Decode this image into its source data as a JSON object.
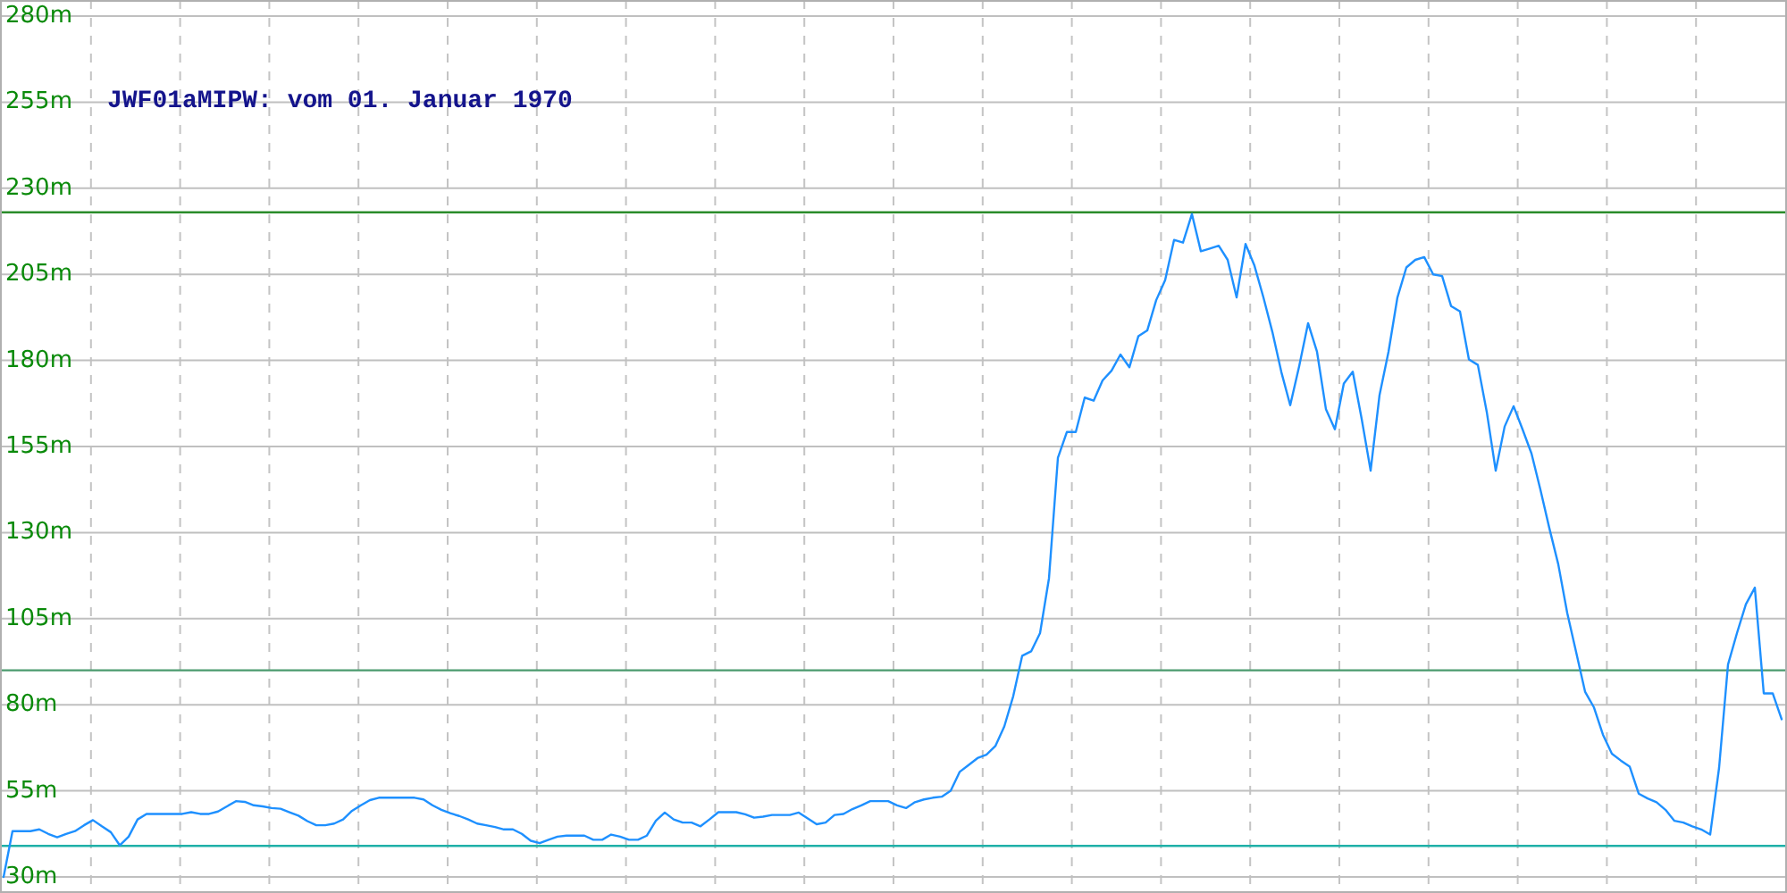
{
  "chart_data": {
    "type": "line",
    "title": "JWF01aMIPW: vom 01. Januar 1970",
    "categories": [
      null,
      null,
      null,
      null,
      null,
      null,
      null,
      null,
      null,
      null,
      null,
      null,
      null,
      null,
      null,
      null,
      null,
      null,
      null,
      null,
      null,
      null,
      null,
      null,
      null,
      null,
      null,
      null,
      null,
      null,
      null,
      null,
      null,
      null,
      null,
      null,
      null,
      null,
      null,
      null,
      null,
      null,
      null,
      null,
      null,
      null,
      null,
      null,
      null,
      null,
      null,
      null,
      null,
      null,
      null,
      null,
      null,
      null,
      null,
      null,
      null,
      null,
      null,
      null,
      null,
      null,
      null,
      null,
      null,
      null,
      null,
      null,
      null,
      null,
      null,
      null,
      null,
      null,
      null,
      null,
      null,
      null,
      null,
      null,
      null,
      null,
      null,
      null,
      null,
      null,
      null,
      null,
      null,
      null,
      null,
      null,
      null,
      null,
      null,
      null,
      null,
      null,
      null,
      null,
      null,
      null,
      null,
      null,
      null,
      null,
      null,
      null,
      null,
      null,
      null,
      null,
      null,
      null,
      null,
      null,
      null,
      null,
      null,
      null,
      null,
      null,
      null,
      null,
      null,
      null,
      null,
      null,
      null,
      null,
      null,
      null,
      null,
      null,
      null,
      null,
      null,
      null,
      null,
      null,
      null,
      null,
      null,
      null,
      null,
      null,
      null,
      null,
      null,
      null,
      null,
      null,
      null,
      null,
      null,
      null,
      null,
      null,
      null,
      null,
      null,
      null,
      null,
      null,
      null,
      null,
      null,
      null,
      null,
      null,
      null,
      null,
      null,
      null,
      null,
      null,
      null,
      null,
      null,
      null,
      null,
      null,
      null,
      null,
      null,
      null,
      null,
      null,
      null,
      null,
      null,
      null,
      null,
      null,
      null,
      null
    ],
    "series": [
      {
        "color": "#1e90ff",
        "values": [
          30,
          43.3,
          43.3,
          43.3,
          43.8,
          42.5,
          41.5,
          42.5,
          43.3,
          45,
          46.5,
          44.7,
          43,
          39.2,
          41.7,
          46.7,
          48.3,
          48.3,
          48.3,
          48.3,
          48.3,
          48.8,
          48.3,
          48.3,
          49,
          50.5,
          52,
          51.8,
          50.8,
          50.5,
          50,
          49.8,
          48.8,
          47.8,
          46.2,
          45,
          45,
          45.5,
          46.7,
          49.2,
          50.8,
          52.3,
          53,
          53,
          53,
          53,
          53,
          52.5,
          50.8,
          49.5,
          48.5,
          47.7,
          46.7,
          45.5,
          45,
          44.5,
          43.8,
          43.8,
          42.5,
          40.5,
          39.8,
          40.8,
          41.7,
          42,
          42,
          42,
          40.8,
          40.8,
          42.3,
          41.7,
          40.8,
          40.8,
          42,
          46.3,
          48.7,
          46.7,
          45.8,
          45.8,
          44.7,
          46.7,
          48.8,
          48.8,
          48.8,
          48.2,
          47.2,
          47.5,
          48,
          48,
          48,
          48.7,
          47,
          45.3,
          45.8,
          48,
          48.3,
          49.7,
          50.8,
          52,
          52,
          52,
          50.8,
          50,
          51.7,
          52.5,
          53,
          53.3,
          55,
          60.5,
          62.5,
          64.5,
          65.5,
          68,
          73.7,
          82.5,
          94.2,
          95.5,
          100.8,
          116.7,
          151.7,
          159.2,
          159.2,
          169.2,
          168.3,
          174.2,
          177,
          181.7,
          178,
          187,
          188.7,
          197.5,
          203.3,
          215,
          214.2,
          222.5,
          211.7,
          212.5,
          213.3,
          209.2,
          198.3,
          213.8,
          207.5,
          198.3,
          188.3,
          176.7,
          167,
          178.3,
          190.8,
          182.5,
          165.8,
          160,
          173.3,
          176.7,
          163,
          148,
          170,
          182.5,
          198.3,
          207,
          209.2,
          210,
          205,
          204.5,
          195.8,
          194.2,
          180.3,
          178.7,
          165,
          148,
          160.8,
          166.7,
          160,
          153,
          142.5,
          131.3,
          120.8,
          106.7,
          95.3,
          83.8,
          79.2,
          71.3,
          65.8,
          63.8,
          62,
          54.2,
          52.8,
          51.7,
          49.5,
          46.3,
          45.8,
          44.7,
          43.8,
          42.3,
          61.7,
          91.7,
          100.8,
          109.2,
          114,
          83.3,
          83.3,
          75.8
        ]
      }
    ],
    "ylim": [
      30,
      280
    ],
    "yticks": [
      {
        "value": 30,
        "label": "30m"
      },
      {
        "value": 55,
        "label": "55m"
      },
      {
        "value": 80,
        "label": "80m"
      },
      {
        "value": 105,
        "label": "105m"
      },
      {
        "value": 130,
        "label": "130m"
      },
      {
        "value": 155,
        "label": "155m"
      },
      {
        "value": 180,
        "label": "180m"
      },
      {
        "value": 205,
        "label": "205m"
      },
      {
        "value": 230,
        "label": "230m"
      },
      {
        "value": 255,
        "label": "255m"
      },
      {
        "value": 280,
        "label": "280m"
      }
    ],
    "grid": true,
    "ref_lines": [
      {
        "axis": "y",
        "value": 223,
        "color": "#2a8c2a"
      },
      {
        "axis": "y",
        "value": 90,
        "color": "#4a9a6e"
      },
      {
        "axis": "y",
        "value": 39,
        "color": "#1fb0a8"
      }
    ]
  }
}
